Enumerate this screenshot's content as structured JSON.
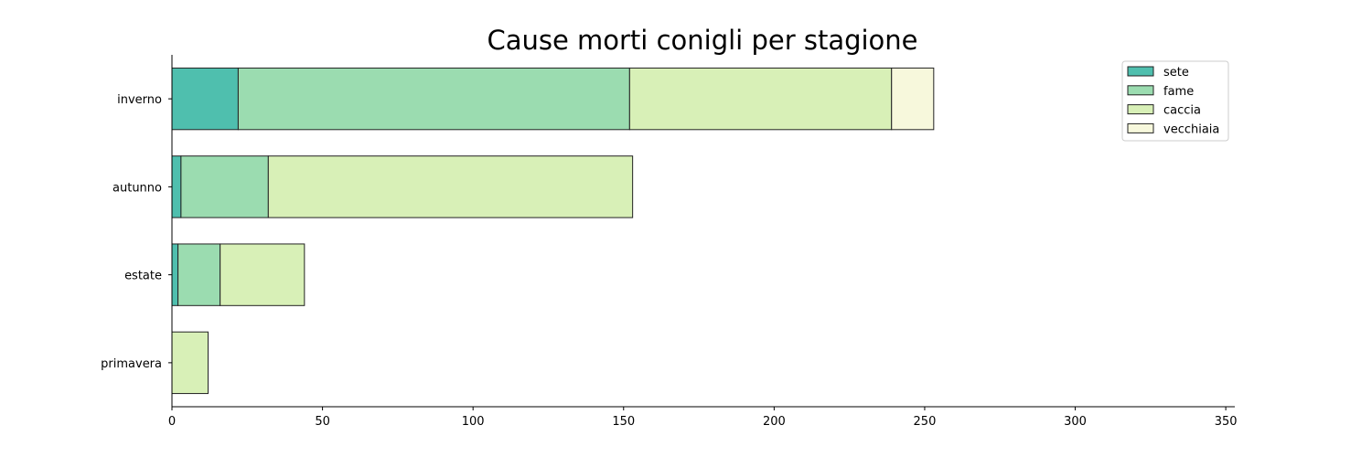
{
  "chart_data": {
    "type": "bar",
    "orientation": "horizontal",
    "stacked": true,
    "title": "Cause morti conigli per stagione",
    "xlabel": "",
    "ylabel": "",
    "categories": [
      "primavera",
      "estate",
      "autunno",
      "inverno"
    ],
    "series": [
      {
        "name": "sete",
        "color": "#4fbfae",
        "values": [
          0,
          2,
          3,
          22
        ]
      },
      {
        "name": "fame",
        "color": "#9bdcb0",
        "values": [
          0,
          14,
          29,
          130
        ]
      },
      {
        "name": "caccia",
        "color": "#d8f0b7",
        "values": [
          12,
          28,
          121,
          87
        ]
      },
      {
        "name": "vecchiaia",
        "color": "#f7f8dc",
        "values": [
          0,
          0,
          0,
          14
        ]
      }
    ],
    "xlim": [
      0,
      353
    ],
    "xticks": [
      0,
      50,
      100,
      150,
      200,
      250,
      300,
      350
    ],
    "grid": false,
    "legend_position": "top-right"
  }
}
